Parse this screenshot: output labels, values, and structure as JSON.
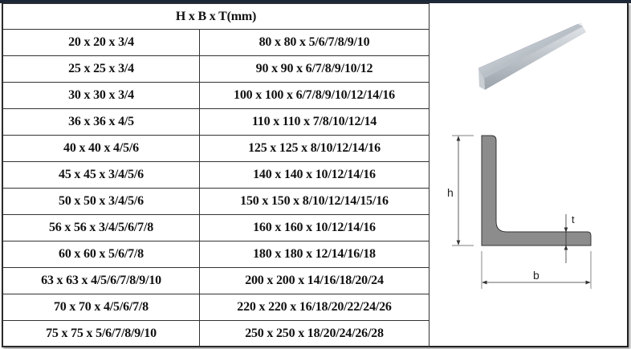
{
  "table": {
    "header": "H x B x T(mm)",
    "rows": [
      [
        "20 x 20 x 3/4",
        "80 x 80 x 5/6/7/8/9/10"
      ],
      [
        "25 x 25 x 3/4",
        "90 x 90 x 6/7/8/9/10/12"
      ],
      [
        "30 x 30 x 3/4",
        "100 x 100 x 6/7/8/9/10/12/14/16"
      ],
      [
        "36 x 36 x 4/5",
        "110 x 110 x 7/8/10/12/14"
      ],
      [
        "40 x 40 x 4/5/6",
        "125 x 125 x 8/10/12/14/16"
      ],
      [
        "45 x 45 x 3/4/5/6",
        "140 x 140 x 10/12/14/16"
      ],
      [
        "50 x 50 x 3/4/5/6",
        "150 x 150 x 8/10/12/14/15/16"
      ],
      [
        "56 x 56 x 3/4/5/6/7/8",
        "160 x 160 x 10/12/14/16"
      ],
      [
        "60 x 60 x 5/6/7/8",
        "180 x 180 x 12/14/16/18"
      ],
      [
        "63 x 63 x 4/5/6/7/8/9/10",
        "200 x 200 x 14/16/18/20/24"
      ],
      [
        "70 x 70 x 4/5/6/7/8",
        "220 x 220 x 16/18/20/22/24/26"
      ],
      [
        "75 x 75 x 5/6/7/8/9/10",
        "250 x 250 x 18/20/24/26/28"
      ]
    ]
  },
  "diagram": {
    "h_label": "h",
    "b_label": "b",
    "t_label": "t"
  },
  "colors": {
    "profile_fill": "#8c8c8c",
    "top_bar": "#1b2636"
  }
}
